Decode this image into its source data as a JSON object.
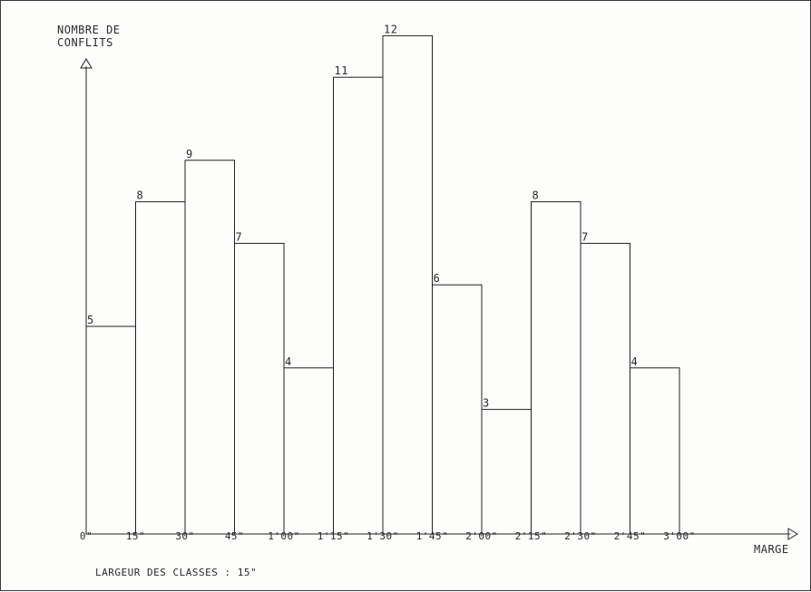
{
  "chart_data": {
    "type": "bar",
    "ylabel_line1": "NOMBRE DE",
    "ylabel_line2": "CONFLITS",
    "xlabel": "MARGE",
    "note": "LARGEUR DES CLASSES : 15\"",
    "ticks": [
      "0\"",
      "15\"",
      "30\"",
      "45\"",
      "1'00\"",
      "1'15\"",
      "1'30\"",
      "1'45\"",
      "2'00\"",
      "2'15\"",
      "2'30\"",
      "2'45\"",
      "3'00\""
    ],
    "bin_width_seconds": 15,
    "values": [
      5,
      8,
      9,
      7,
      4,
      11,
      12,
      6,
      3,
      8,
      7,
      4
    ],
    "ylim": [
      0,
      12
    ]
  }
}
